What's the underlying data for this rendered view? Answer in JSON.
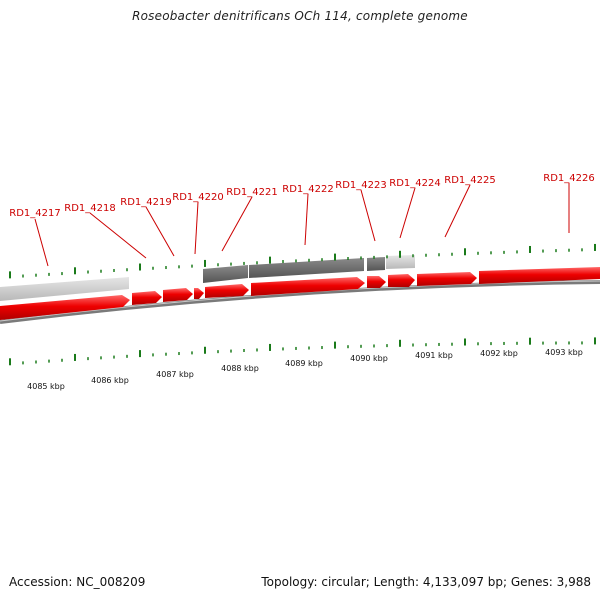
{
  "title": "Roseobacter denitrificans OCh 114, complete genome",
  "accession": "Accession: NC_008209",
  "summary": "Topology: circular; Length: 4,133,097 bp; Genes: 3,988",
  "colors": {
    "gene_label": "#cc0000",
    "forward_gene": "#ee0000",
    "reverse_gene": "#c8c8c8",
    "tick": "#1a7a1a",
    "backbone": "#888888"
  },
  "gene_labels": [
    "RD1_4217",
    "RD1_4218",
    "RD1_4219",
    "RD1_4220",
    "RD1_4221",
    "RD1_4222",
    "RD1_4223",
    "RD1_4224",
    "RD1_4225",
    "RD1_4226"
  ],
  "kbp_labels": [
    "4085 kbp",
    "4086 kbp",
    "4087 kbp",
    "4088 kbp",
    "4089 kbp",
    "4090 kbp",
    "4091 kbp",
    "4092 kbp",
    "4093 kbp"
  ]
}
